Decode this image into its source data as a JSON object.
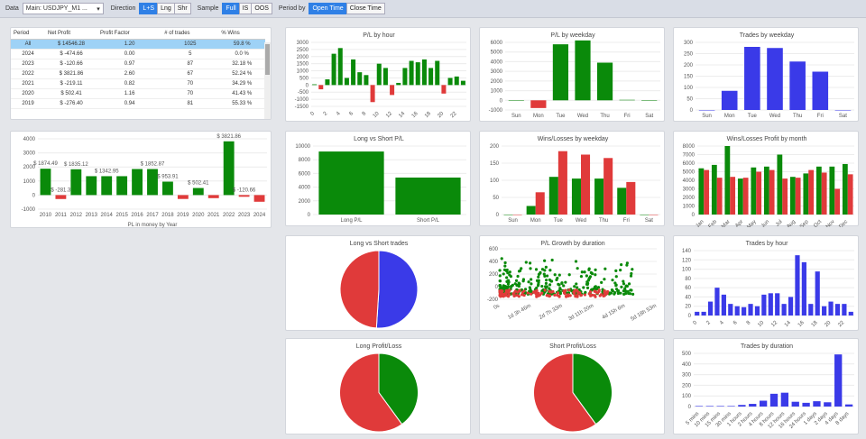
{
  "toolbar": {
    "data_label": "Data",
    "data_value": "Main: USDJPY_M1 ...",
    "direction_label": "Direction",
    "direction": [
      "L+S",
      "Lng",
      "Shr"
    ],
    "sample_label": "Sample",
    "sample": [
      "Full",
      "IS",
      "OOS"
    ],
    "period_label": "Period by",
    "period": [
      "Open Time",
      "Close Time"
    ]
  },
  "table": {
    "headers": [
      "Period",
      "Net Profit",
      "Profit Factor",
      "# of trades",
      "% Wins"
    ],
    "rows": [
      [
        "All",
        "$ 14546.28",
        "1.20",
        "1025",
        "59.8 %"
      ],
      [
        "2024",
        "$ -474.66",
        "0.00",
        "5",
        "0.0 %"
      ],
      [
        "2023",
        "$ -120.66",
        "0.97",
        "87",
        "32.18 %"
      ],
      [
        "2022",
        "$ 3821.86",
        "2.60",
        "67",
        "52.24 %"
      ],
      [
        "2021",
        "$ -219.11",
        "0.82",
        "70",
        "34.29 %"
      ],
      [
        "2020",
        "$ 502.41",
        "1.16",
        "70",
        "41.43 %"
      ],
      [
        "2019",
        "$ -276.40",
        "0.94",
        "81",
        "55.33 %"
      ]
    ]
  },
  "colors": {
    "green": "#0a8a0a",
    "red": "#e03a3a",
    "blue": "#3a3ae8"
  },
  "chart_data": [
    {
      "id": "year",
      "type": "bar",
      "xlabel": "PL in money by Year",
      "categories": [
        "2010",
        "2011",
        "2012",
        "2013",
        "2014",
        "2015",
        "2016",
        "2017",
        "2018",
        "2019",
        "2020",
        "2021",
        "2022",
        "2023",
        "2024"
      ],
      "values": [
        1874.49,
        -281.3,
        1835.12,
        1342.95,
        1342.95,
        1342.95,
        1852.87,
        1852.87,
        953.91,
        -276.4,
        502.41,
        -219.11,
        3821.86,
        -120.66,
        -474.66
      ],
      "labels": [
        "$ 1874.49",
        "$ -281.3",
        "$ 1835.12",
        "",
        "$ 1342.95",
        "",
        "",
        "$ 1852.87",
        "$ 953.91",
        "",
        "$ 502.41",
        "",
        "$ 3821.86",
        "$ -120.66",
        ""
      ],
      "ylim": [
        -1000,
        4000
      ],
      "yticks": [
        -1000,
        0,
        1000,
        2000,
        3000,
        4000
      ]
    },
    {
      "id": "pl-hour",
      "type": "bar",
      "title": "P/L by hour",
      "categories": [
        "0",
        "1",
        "2",
        "3",
        "4",
        "5",
        "6",
        "7",
        "8",
        "9",
        "10",
        "11",
        "12",
        "13",
        "14",
        "15",
        "16",
        "17",
        "18",
        "19",
        "20",
        "21",
        "22",
        "23"
      ],
      "xticks": [
        "0",
        "2",
        "4",
        "6",
        "8",
        "10",
        "12",
        "14",
        "16",
        "18",
        "20",
        "22"
      ],
      "values": [
        50,
        -300,
        400,
        2200,
        2600,
        500,
        1800,
        900,
        700,
        -1200,
        1500,
        1200,
        -700,
        150,
        1200,
        1700,
        1600,
        1800,
        1200,
        1700,
        -600,
        500,
        600,
        300
      ],
      "ylim": [
        -1500,
        3000
      ],
      "yticks": [
        -1500,
        -1000,
        -500,
        0,
        500,
        1000,
        1500,
        2000,
        2500,
        3000
      ]
    },
    {
      "id": "pl-weekday",
      "type": "bar",
      "title": "P/L by weekday",
      "categories": [
        "Sun",
        "Mon",
        "Tue",
        "Wed",
        "Thu",
        "Fri",
        "Sat"
      ],
      "values": [
        0,
        -800,
        5800,
        6200,
        3900,
        50,
        0
      ],
      "ylim": [
        -1000,
        6000
      ],
      "yticks": [
        -1000,
        0,
        1000,
        2000,
        3000,
        4000,
        5000,
        6000
      ]
    },
    {
      "id": "trades-weekday",
      "type": "bar",
      "title": "Trades by weekday",
      "categories": [
        "Sun",
        "Mon",
        "Tue",
        "Wed",
        "Thu",
        "Fri",
        "Sat"
      ],
      "values": [
        0,
        85,
        280,
        275,
        215,
        170,
        0
      ],
      "ylim": [
        0,
        300
      ],
      "yticks": [
        0,
        50,
        100,
        150,
        200,
        250,
        300
      ]
    },
    {
      "id": "long-short-pl",
      "type": "bar",
      "title": "Long vs Short P/L",
      "categories": [
        "Long P/L",
        "Short P/L"
      ],
      "values": [
        9200,
        5400
      ],
      "ylim": [
        0,
        10000
      ],
      "yticks": [
        0,
        2000,
        4000,
        6000,
        8000,
        10000
      ]
    },
    {
      "id": "winloss-weekday",
      "type": "bar",
      "title": "Wins/Losses by weekday",
      "categories": [
        "Sun",
        "Mon",
        "Tue",
        "Wed",
        "Thu",
        "Fri",
        "Sat"
      ],
      "series": [
        {
          "values": [
            0,
            25,
            110,
            105,
            105,
            78,
            0
          ]
        },
        {
          "values": [
            0,
            65,
            185,
            175,
            165,
            95,
            0
          ]
        }
      ],
      "ylim": [
        0,
        200
      ],
      "yticks": [
        0,
        50,
        100,
        150,
        200
      ]
    },
    {
      "id": "winloss-month",
      "type": "bar",
      "title": "Wins/Losses Profit by month",
      "categories": [
        "Jan",
        "Feb",
        "Mar",
        "Apr",
        "May",
        "Jun",
        "Jul",
        "Aug",
        "Sep",
        "Oct",
        "Nov",
        "Dec"
      ],
      "series": [
        {
          "values": [
            5400,
            5800,
            8000,
            4200,
            5500,
            5600,
            7000,
            4400,
            4800,
            5600,
            5600,
            5900
          ]
        },
        {
          "values": [
            5200,
            4300,
            4400,
            4300,
            5000,
            5200,
            4200,
            4300,
            5200,
            4900,
            3000,
            4700
          ]
        }
      ],
      "ylim": [
        0,
        8000
      ],
      "yticks": [
        0,
        1000,
        2000,
        3000,
        4000,
        5000,
        6000,
        7000,
        8000
      ]
    },
    {
      "id": "long-short-trades",
      "type": "pie",
      "title": "Long vs Short trades",
      "values": [
        51,
        49
      ]
    },
    {
      "id": "growth-duration",
      "type": "scatter",
      "title": "P/L Growth by duration",
      "xticks": [
        "0s",
        "1d 3h 46m",
        "2d 7h 33m",
        "3d 11h 20m",
        "4d 15h 6m",
        "5d 18h 53m"
      ],
      "ylim": [
        -200,
        600
      ],
      "yticks": [
        -200,
        0,
        200,
        400,
        600
      ]
    },
    {
      "id": "trades-hour",
      "type": "bar",
      "title": "Trades by hour",
      "categories": [
        "0",
        "1",
        "2",
        "3",
        "4",
        "5",
        "6",
        "7",
        "8",
        "9",
        "10",
        "11",
        "12",
        "13",
        "14",
        "15",
        "16",
        "17",
        "18",
        "19",
        "20",
        "21",
        "22",
        "23"
      ],
      "xticks": [
        "0",
        "2",
        "4",
        "6",
        "8",
        "10",
        "12",
        "14",
        "16",
        "18",
        "20",
        "22"
      ],
      "values": [
        8,
        8,
        30,
        60,
        45,
        25,
        20,
        18,
        25,
        20,
        45,
        48,
        48,
        25,
        40,
        130,
        115,
        25,
        95,
        20,
        30,
        25,
        25,
        8
      ],
      "ylim": [
        0,
        140
      ],
      "yticks": [
        0,
        20,
        40,
        60,
        80,
        100,
        120,
        140
      ]
    },
    {
      "id": "long-pl",
      "type": "pie",
      "title": "Long Profit/Loss",
      "values": [
        40,
        60
      ]
    },
    {
      "id": "short-pl",
      "type": "pie",
      "title": "Short Profit/Loss",
      "values": [
        40,
        60
      ]
    },
    {
      "id": "trades-duration",
      "type": "bar",
      "title": "Trades by duration",
      "categories": [
        "5 mins",
        "10 mins",
        "15 mins",
        "30 mins",
        "1 hours",
        "2 hours",
        "4 hours",
        "8 hours",
        "12 hours",
        "16 hours",
        "24 hours",
        "1 days",
        "2 days",
        "4 days",
        "8 days"
      ],
      "values": [
        5,
        5,
        5,
        5,
        15,
        25,
        55,
        120,
        130,
        45,
        35,
        50,
        40,
        490,
        20
      ],
      "ylim": [
        0,
        500
      ],
      "yticks": [
        0,
        100,
        200,
        300,
        400,
        500
      ]
    }
  ]
}
